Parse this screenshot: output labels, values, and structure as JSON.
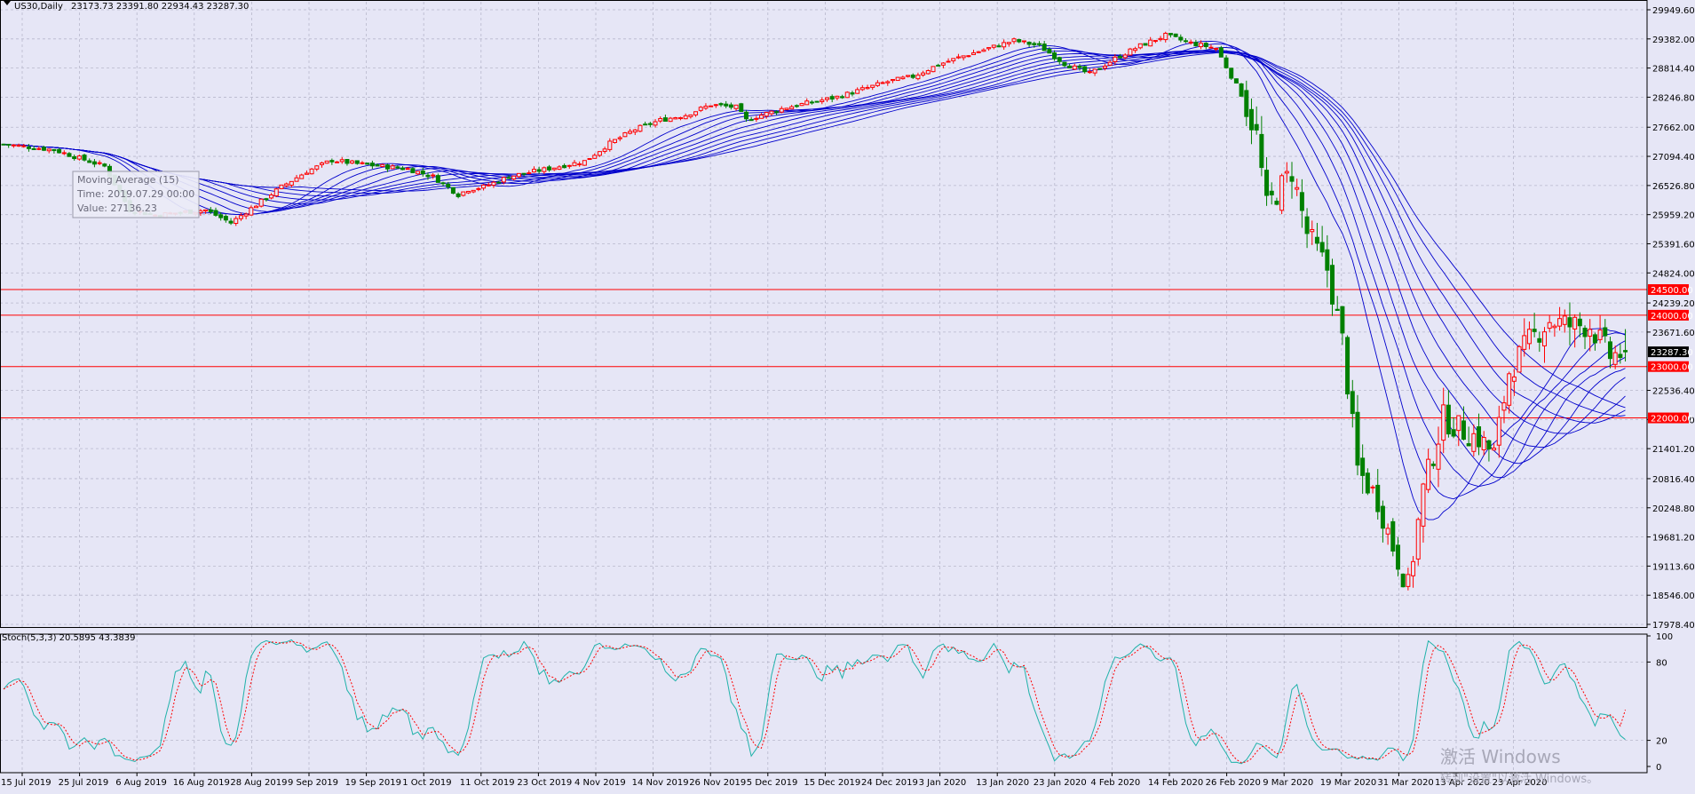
{
  "header": {
    "symbol": "US30,Daily",
    "ohlc": "23173.73 23391.80 22934.43 23287.30"
  },
  "tooltip": {
    "line1": "Moving Average (15)",
    "line2": "Time: 2019.07.29 00:00",
    "line3": "Value: 27136.23"
  },
  "stoch_header": "Stoch(5,3,3) 20.5895 43.3839",
  "watermark": {
    "line1": "激活 Windows",
    "line2": "转到\"设置\"以激活 Windows。"
  },
  "colors": {
    "background": "#e6e6f6",
    "grid": "#b8b8cc",
    "bull": "#ff0000",
    "bear": "#008000",
    "ma": "#0000cc",
    "level": "#ff0000",
    "stoch_main": "#20b2aa",
    "stoch_signal": "#ff0000"
  },
  "chart_data": [
    {
      "type": "candlestick",
      "title": "US30,Daily",
      "ylim": [
        17978.4,
        30000
      ],
      "y_ticks": [
        29949.6,
        29382.0,
        28814.4,
        28246.8,
        27662.0,
        27094.4,
        26526.8,
        25959.2,
        25391.6,
        24824.0,
        24239.2,
        23671.6,
        22536.4,
        21968.8,
        21401.2,
        20816.4,
        20248.8,
        19681.2,
        19113.6,
        18546.0,
        17978.4
      ],
      "x_ticks": [
        "15 Jul 2019",
        "25 Jul 2019",
        "6 Aug 2019",
        "16 Aug 2019",
        "28 Aug 2019",
        "9 Sep 2019",
        "19 Sep 2019",
        "1 Oct 2019",
        "11 Oct 2019",
        "23 Oct 2019",
        "4 Nov 2019",
        "14 Nov 2019",
        "26 Nov 2019",
        "5 Dec 2019",
        "15 Dec 2019",
        "24 Dec 2019",
        "3 Jan 2020",
        "13 Jan 2020",
        "23 Jan 2020",
        "4 Feb 2020",
        "14 Feb 2020",
        "26 Feb 2020",
        "9 Mar 2020",
        "19 Mar 2020",
        "31 Mar 2020",
        "13 Apr 2020",
        "23 Apr 2020"
      ],
      "levels": [
        24500.0,
        24000.0,
        23000.0,
        22000.0
      ],
      "current_price": 23287.3,
      "close_path": [
        [
          0,
          27330
        ],
        [
          10,
          27220
        ],
        [
          20,
          26900
        ],
        [
          25,
          26050
        ],
        [
          30,
          25950
        ],
        [
          40,
          26050
        ],
        [
          45,
          25800
        ],
        [
          50,
          26150
        ],
        [
          55,
          26500
        ],
        [
          60,
          26800
        ],
        [
          65,
          27020
        ],
        [
          70,
          26950
        ],
        [
          75,
          26900
        ],
        [
          80,
          26850
        ],
        [
          85,
          26700
        ],
        [
          90,
          26350
        ],
        [
          92,
          26450
        ],
        [
          95,
          26500
        ],
        [
          100,
          26700
        ],
        [
          105,
          26800
        ],
        [
          110,
          26900
        ],
        [
          115,
          27000
        ],
        [
          120,
          27350
        ],
        [
          125,
          27620
        ],
        [
          130,
          27800
        ],
        [
          135,
          27900
        ],
        [
          140,
          28100
        ],
        [
          145,
          28050
        ],
        [
          147,
          27800
        ],
        [
          150,
          27900
        ],
        [
          155,
          28050
        ],
        [
          160,
          28150
        ],
        [
          165,
          28250
        ],
        [
          170,
          28400
        ],
        [
          175,
          28550
        ],
        [
          180,
          28650
        ],
        [
          185,
          28880
        ],
        [
          190,
          29050
        ],
        [
          195,
          29200
        ],
        [
          200,
          29350
        ],
        [
          205,
          29250
        ],
        [
          210,
          28900
        ],
        [
          215,
          28700
        ],
        [
          220,
          29000
        ],
        [
          225,
          29250
        ],
        [
          230,
          29450
        ],
        [
          235,
          29300
        ],
        [
          240,
          29200
        ],
        [
          245,
          28300
        ],
        [
          248,
          27500
        ],
        [
          250,
          26100
        ],
        [
          255,
          26800
        ],
        [
          258,
          25600
        ],
        [
          262,
          24900
        ],
        [
          265,
          23500
        ],
        [
          268,
          21000
        ],
        [
          272,
          20400
        ],
        [
          275,
          19500
        ],
        [
          278,
          18700
        ],
        [
          281,
          20600
        ],
        [
          285,
          22000
        ],
        [
          288,
          21800
        ],
        [
          292,
          21600
        ],
        [
          295,
          21300
        ],
        [
          298,
          22900
        ],
        [
          302,
          23500
        ],
        [
          306,
          23900
        ],
        [
          310,
          23800
        ],
        [
          314,
          23800
        ],
        [
          318,
          23200
        ],
        [
          321,
          23287
        ]
      ],
      "moving_averages": {
        "periods": [
          15,
          20,
          25,
          30,
          35,
          40,
          45,
          50,
          55,
          60
        ]
      }
    },
    {
      "type": "line",
      "title": "Stoch(5,3,3) 20.5895 43.3839",
      "ylim": [
        0,
        100
      ],
      "y_ticks": [
        100,
        80,
        20,
        0
      ],
      "levels": [
        80,
        20
      ],
      "main_value": 20.5895,
      "signal_value": 43.3839
    }
  ]
}
